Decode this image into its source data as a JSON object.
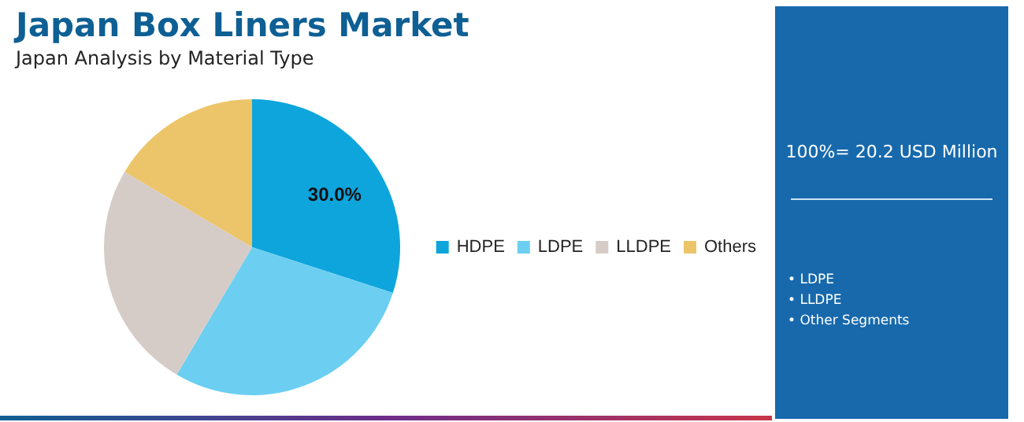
{
  "chart_data": {
    "type": "pie",
    "title": "Japan Box Liners Market",
    "subtitle": "Japan Analysis by Material Type",
    "categories": [
      "HDPE",
      "LDPE",
      "LLDPE",
      "Others"
    ],
    "values": [
      30.0,
      28.5,
      25.0,
      16.5
    ],
    "colors": [
      "#0ea5dc",
      "#6ccff2",
      "#d6ccc7",
      "#ecc56a"
    ],
    "value_labels": [
      "30.0%",
      null,
      null,
      null
    ],
    "legend": "right",
    "annotations": [
      "100%= 20.2 USD Million",
      "• LDPE",
      "• LLDPE",
      "• Other Segments"
    ]
  }
}
